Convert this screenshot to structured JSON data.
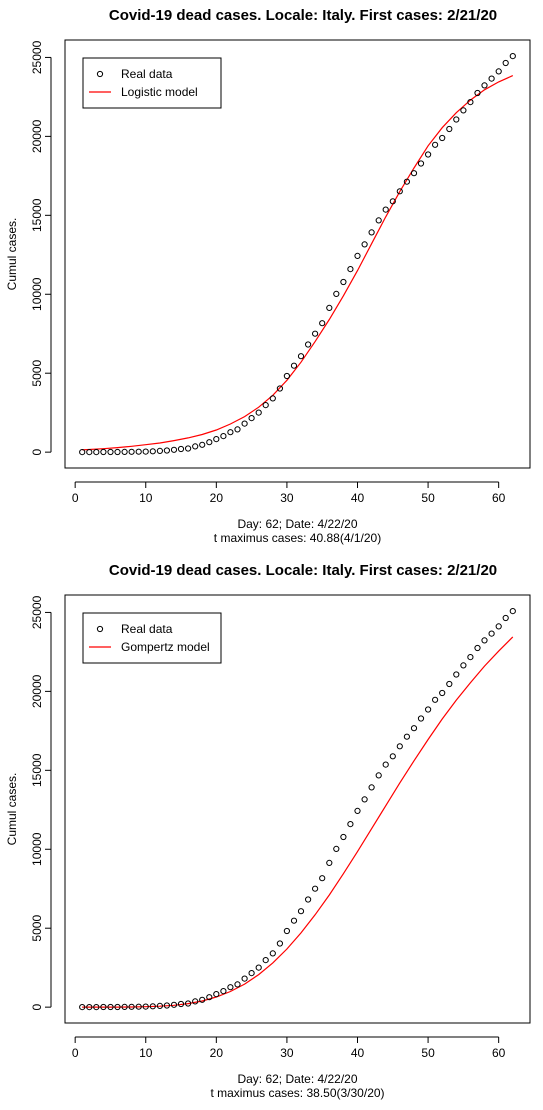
{
  "chart_data": [
    {
      "type": "scatter",
      "title": "Covid-19 dead cases. Locale: Italy. First cases: 2/21/20",
      "xlabel_lines": [
        "Day: 62; Date: 4/22/20",
        "t maximus cases: 40.88(4/1/20)"
      ],
      "ylabel": "Cumul cases.",
      "xlim": [
        1,
        62
      ],
      "ylim": [
        0,
        25100
      ],
      "x_ticks": [
        0,
        10,
        20,
        30,
        40,
        50,
        60
      ],
      "y_ticks": [
        0,
        5000,
        10000,
        15000,
        20000,
        25000
      ],
      "legend_position": "top-left",
      "legend": [
        "Real data",
        "Logistic model"
      ],
      "colors": {
        "model": "#ff0000",
        "points": "#000000"
      },
      "series": [
        {
          "name": "Real data",
          "x": [
            1,
            2,
            3,
            4,
            5,
            6,
            7,
            8,
            9,
            10,
            11,
            12,
            13,
            14,
            15,
            16,
            17,
            18,
            19,
            20,
            21,
            22,
            23,
            24,
            25,
            26,
            27,
            28,
            29,
            30,
            31,
            32,
            33,
            34,
            35,
            36,
            37,
            38,
            39,
            40,
            41,
            42,
            43,
            44,
            45,
            46,
            47,
            48,
            49,
            50,
            51,
            52,
            53,
            54,
            55,
            56,
            57,
            58,
            59,
            60,
            61,
            62
          ],
          "y": [
            1,
            2,
            3,
            7,
            10,
            12,
            17,
            21,
            29,
            34,
            52,
            79,
            107,
            148,
            197,
            233,
            366,
            463,
            631,
            827,
            1016,
            1266,
            1441,
            1809,
            2158,
            2503,
            2978,
            3405,
            4032,
            4825,
            5476,
            6077,
            6820,
            7503,
            8165,
            9134,
            10023,
            10779,
            11591,
            12428,
            13155,
            13915,
            14681,
            15362,
            15887,
            16523,
            17127,
            17669,
            18279,
            18849,
            19468,
            19899,
            20465,
            21067,
            21645,
            22170,
            22745,
            23227,
            23660,
            24114,
            24648,
            25085
          ]
        },
        {
          "name": "Logistic model",
          "x": [
            1,
            2,
            4,
            6,
            8,
            10,
            12,
            14,
            16,
            18,
            20,
            22,
            24,
            26,
            28,
            30,
            32,
            34,
            36,
            38,
            40,
            42,
            44,
            46,
            48,
            50,
            52,
            54,
            56,
            58,
            60,
            62
          ],
          "y": [
            150,
            170,
            220,
            290,
            370,
            470,
            580,
            730,
            900,
            1120,
            1400,
            1780,
            2250,
            2850,
            3600,
            4550,
            5700,
            7000,
            8400,
            9900,
            11500,
            13200,
            14900,
            16500,
            18000,
            19400,
            20550,
            21500,
            22300,
            22950,
            23450,
            23850
          ]
        }
      ]
    },
    {
      "type": "scatter",
      "title": "Covid-19 dead cases. Locale: Italy. First cases: 2/21/20",
      "xlabel_lines": [
        "Day: 62; Date: 4/22/20",
        "t maximus cases: 38.50(3/30/20)"
      ],
      "ylabel": "Cumul cases.",
      "xlim": [
        1,
        62
      ],
      "ylim": [
        0,
        25100
      ],
      "x_ticks": [
        0,
        10,
        20,
        30,
        40,
        50,
        60
      ],
      "y_ticks": [
        0,
        5000,
        10000,
        15000,
        20000,
        25000
      ],
      "legend_position": "top-left",
      "legend": [
        "Real data",
        "Gompertz model"
      ],
      "colors": {
        "model": "#ff0000",
        "points": "#000000"
      },
      "series": [
        {
          "name": "Real data",
          "x": [
            1,
            2,
            3,
            4,
            5,
            6,
            7,
            8,
            9,
            10,
            11,
            12,
            13,
            14,
            15,
            16,
            17,
            18,
            19,
            20,
            21,
            22,
            23,
            24,
            25,
            26,
            27,
            28,
            29,
            30,
            31,
            32,
            33,
            34,
            35,
            36,
            37,
            38,
            39,
            40,
            41,
            42,
            43,
            44,
            45,
            46,
            47,
            48,
            49,
            50,
            51,
            52,
            53,
            54,
            55,
            56,
            57,
            58,
            59,
            60,
            61,
            62
          ],
          "y": [
            1,
            2,
            3,
            7,
            10,
            12,
            17,
            21,
            29,
            34,
            52,
            79,
            107,
            148,
            197,
            233,
            366,
            463,
            631,
            827,
            1016,
            1266,
            1441,
            1809,
            2158,
            2503,
            2978,
            3405,
            4032,
            4825,
            5476,
            6077,
            6820,
            7503,
            8165,
            9134,
            10023,
            10779,
            11591,
            12428,
            13155,
            13915,
            14681,
            15362,
            15887,
            16523,
            17127,
            17669,
            18279,
            18849,
            19468,
            19899,
            20465,
            21067,
            21645,
            22170,
            22745,
            23227,
            23660,
            24114,
            24648,
            25085
          ]
        },
        {
          "name": "Gompertz model",
          "x": [
            1,
            2,
            4,
            6,
            8,
            10,
            12,
            14,
            16,
            18,
            20,
            22,
            24,
            26,
            28,
            30,
            32,
            34,
            36,
            38,
            40,
            42,
            44,
            46,
            48,
            50,
            52,
            54,
            56,
            58,
            60,
            62
          ],
          "y": [
            0,
            0,
            2,
            5,
            12,
            28,
            60,
            120,
            225,
            390,
            640,
            990,
            1460,
            2060,
            2800,
            3680,
            4700,
            5850,
            7100,
            8450,
            9850,
            11300,
            12750,
            14200,
            15600,
            16950,
            18250,
            19450,
            20550,
            21600,
            22550,
            23450
          ]
        }
      ]
    }
  ]
}
